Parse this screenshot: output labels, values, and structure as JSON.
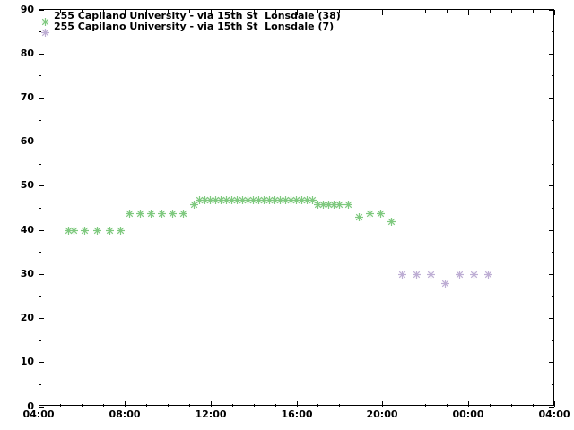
{
  "chart_data": {
    "type": "scatter",
    "title": "",
    "xlabel": "",
    "ylabel": "",
    "marker": "asterisk",
    "legend_position": "top-left-inside",
    "background_color": "#ffffff",
    "axis_color": "#000000",
    "x_axis": {
      "start_hour": 4,
      "end_hour": 28,
      "major_tick_hours": 4,
      "minor_tick_hours": 1,
      "tick_labels": [
        "04:00",
        "08:00",
        "12:00",
        "16:00",
        "20:00",
        "00:00",
        "04:00"
      ]
    },
    "y_axis": {
      "min": 0,
      "max": 90,
      "major_tick_step": 10,
      "minor_tick_step": 5,
      "tick_labels": [
        "0",
        "10",
        "20",
        "30",
        "40",
        "50",
        "60",
        "70",
        "80",
        "90"
      ]
    },
    "series": [
      {
        "name": "255 Capilano University - via 15th St  Lonsdale (38)",
        "color": "#7fc97f",
        "points": [
          [
            "05:25",
            41
          ],
          [
            "05:40",
            41
          ],
          [
            "06:10",
            41
          ],
          [
            "06:45",
            41
          ],
          [
            "07:20",
            41
          ],
          [
            "07:50",
            41
          ],
          [
            "08:15",
            45
          ],
          [
            "08:45",
            45
          ],
          [
            "09:15",
            45
          ],
          [
            "09:45",
            45
          ],
          [
            "10:15",
            45
          ],
          [
            "10:45",
            45
          ],
          [
            "11:15",
            47
          ],
          [
            "11:30",
            48
          ],
          [
            "11:45",
            48
          ],
          [
            "12:00",
            48
          ],
          [
            "12:15",
            48
          ],
          [
            "12:30",
            48
          ],
          [
            "12:45",
            48
          ],
          [
            "13:00",
            48
          ],
          [
            "13:15",
            48
          ],
          [
            "13:30",
            48
          ],
          [
            "13:45",
            48
          ],
          [
            "14:00",
            48
          ],
          [
            "14:15",
            48
          ],
          [
            "14:30",
            48
          ],
          [
            "14:45",
            48
          ],
          [
            "15:00",
            48
          ],
          [
            "15:15",
            48
          ],
          [
            "15:30",
            48
          ],
          [
            "15:45",
            48
          ],
          [
            "16:00",
            48
          ],
          [
            "16:15",
            48
          ],
          [
            "16:30",
            48
          ],
          [
            "16:45",
            48
          ],
          [
            "17:00",
            47
          ],
          [
            "17:15",
            47
          ],
          [
            "17:30",
            47
          ],
          [
            "17:45",
            47
          ],
          [
            "18:00",
            47
          ],
          [
            "18:25",
            47
          ],
          [
            "18:55",
            44
          ],
          [
            "19:25",
            45
          ],
          [
            "19:55",
            45
          ],
          [
            "20:25",
            43
          ]
        ]
      },
      {
        "name": "255 Capilano University - via 15th St  Lonsdale (7)",
        "color": "#beaed4",
        "points": [
          [
            "20:55",
            31
          ],
          [
            "21:35",
            31
          ],
          [
            "22:15",
            31
          ],
          [
            "22:55",
            29
          ],
          [
            "23:35",
            31
          ],
          [
            "00:15",
            31
          ],
          [
            "00:55",
            31
          ]
        ]
      }
    ]
  }
}
